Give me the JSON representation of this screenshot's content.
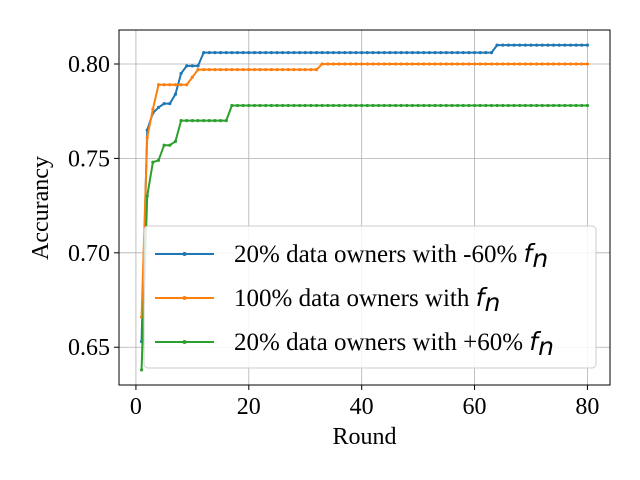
{
  "chart_data": {
    "type": "line",
    "xlabel": "Round",
    "ylabel": "Accurancy",
    "xlim": [
      -3.0,
      84.0
    ],
    "ylim": [
      0.63,
      0.818
    ],
    "xticks": [
      0,
      20,
      40,
      60,
      80
    ],
    "yticks": [
      0.65,
      0.7,
      0.75,
      0.8
    ],
    "xtick_labels": [
      "0",
      "20",
      "40",
      "60",
      "80"
    ],
    "ytick_labels": [
      "0.65",
      "0.70",
      "0.75",
      "0.80"
    ],
    "grid": true,
    "legend_position": "lower-right",
    "series": [
      {
        "name": "20% data owners with -60% f_n",
        "legend_prefix": "20% data owners with -60% ",
        "legend_symbol": "f",
        "legend_subscript": "n",
        "color": "#1f77b4",
        "x": [
          1,
          2,
          3,
          4,
          5,
          6,
          7,
          8,
          9,
          10,
          11,
          12,
          63,
          64,
          80
        ],
        "y": [
          0.653,
          0.765,
          0.774,
          0.777,
          0.779,
          0.779,
          0.784,
          0.795,
          0.799,
          0.799,
          0.799,
          0.806,
          0.806,
          0.81,
          0.81
        ]
      },
      {
        "name": "100% data owners with f_n",
        "legend_prefix": "100% data owners with ",
        "legend_symbol": "f",
        "legend_subscript": "n",
        "color": "#ff7f0e",
        "x": [
          1,
          2,
          3,
          4,
          9,
          10,
          11,
          32,
          33,
          80
        ],
        "y": [
          0.666,
          0.761,
          0.776,
          0.789,
          0.789,
          0.793,
          0.797,
          0.797,
          0.8,
          0.8
        ]
      },
      {
        "name": "20% data owners with +60% f_n",
        "legend_prefix": "20% data owners with +60% ",
        "legend_symbol": "f",
        "legend_subscript": "n",
        "color": "#2ca02c",
        "x": [
          1,
          2,
          3,
          4,
          5,
          6,
          7,
          8,
          16,
          17,
          80
        ],
        "y": [
          0.638,
          0.73,
          0.748,
          0.749,
          0.757,
          0.757,
          0.759,
          0.77,
          0.77,
          0.778,
          0.778
        ]
      }
    ]
  }
}
